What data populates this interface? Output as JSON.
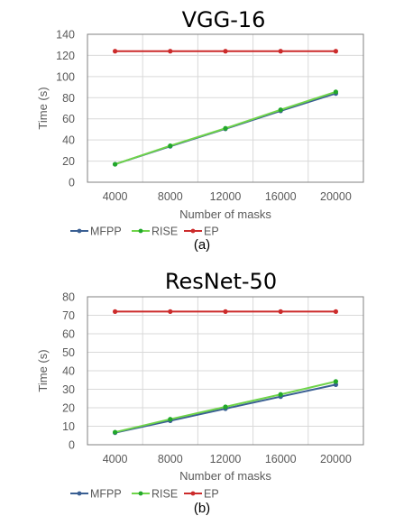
{
  "colors": {
    "MFPP": "#3a5f93",
    "RISE": "#6fd44a",
    "EP": "#cc2b2b",
    "RISE_marker": "#22a82a"
  },
  "chart_data": [
    {
      "type": "line",
      "title": "VGG-16",
      "xlabel": "Number of masks",
      "ylabel": "Time (s)",
      "caption": "(a)",
      "categories": [
        "4000",
        "8000",
        "12000",
        "16000",
        "20000"
      ],
      "ylim": [
        0,
        140
      ],
      "yticks": [
        0,
        20,
        40,
        60,
        80,
        100,
        120,
        140
      ],
      "grid": true,
      "legend": "bottom-left",
      "series": [
        {
          "name": "MFPP",
          "values": [
            17,
            34,
            50.5,
            67.5,
            84
          ]
        },
        {
          "name": "RISE",
          "values": [
            17,
            34.5,
            51,
            68.5,
            85.5
          ]
        },
        {
          "name": "EP",
          "values": [
            124,
            124,
            124,
            124,
            124
          ]
        }
      ]
    },
    {
      "type": "line",
      "title": "ResNet-50",
      "xlabel": "Number of masks",
      "ylabel": "Time (s)",
      "caption": "(b)",
      "categories": [
        "4000",
        "8000",
        "12000",
        "16000",
        "20000"
      ],
      "ylim": [
        0,
        80
      ],
      "yticks": [
        0,
        10,
        20,
        30,
        40,
        50,
        60,
        70,
        80
      ],
      "grid": true,
      "legend": "bottom-left",
      "series": [
        {
          "name": "MFPP",
          "values": [
            6.5,
            13,
            19.5,
            26,
            32.5
          ]
        },
        {
          "name": "RISE",
          "values": [
            6.8,
            13.8,
            20.5,
            27.2,
            34.2
          ]
        },
        {
          "name": "EP",
          "values": [
            72,
            72,
            72,
            72,
            72
          ]
        }
      ]
    }
  ]
}
